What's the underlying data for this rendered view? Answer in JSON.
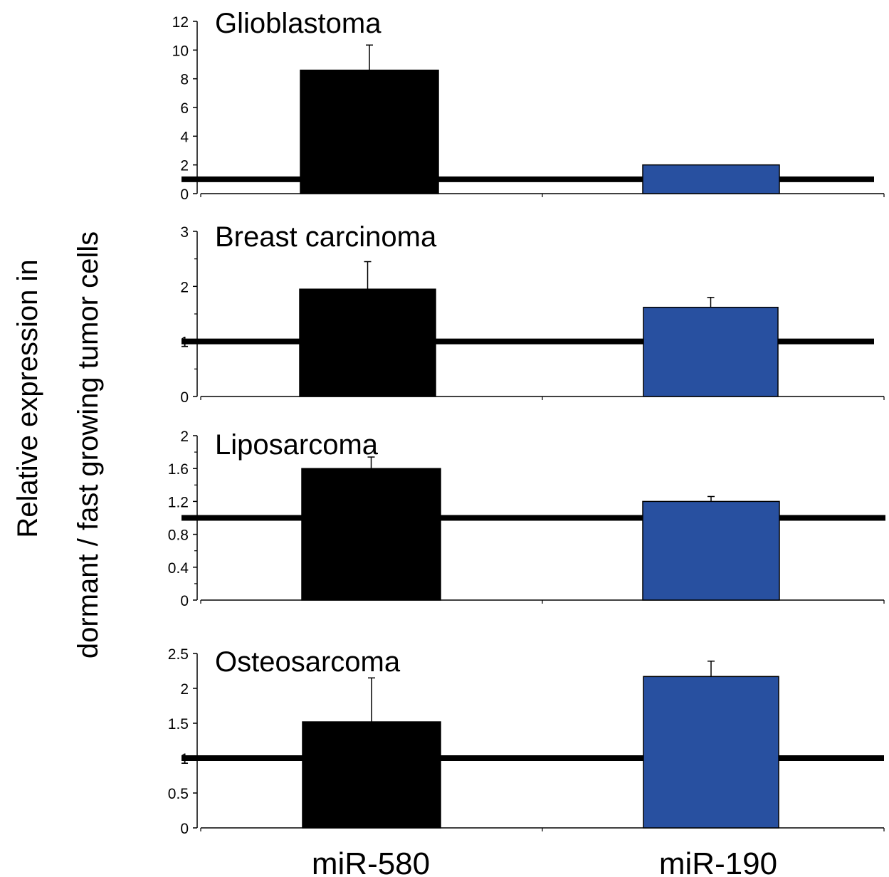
{
  "figure": {
    "ylabel_line1": "Relative expression in",
    "ylabel_line2": "dormant / fast growing tumor cells"
  },
  "chart_data": [
    {
      "type": "bar",
      "title": "Glioblastoma",
      "categories": [
        "miR-580",
        "miR-190"
      ],
      "values": [
        8.6,
        2.0
      ],
      "errors": [
        1.75,
        0
      ],
      "ylim": [
        0,
        12
      ],
      "yticks": [
        0,
        2,
        4,
        6,
        8,
        10,
        12
      ],
      "ytick_labels": [
        "0",
        "2",
        "4",
        "6",
        "8",
        "10",
        "12"
      ],
      "minor_ticks": false,
      "reference_line": 1,
      "colors": [
        "#000000",
        "#2850a0"
      ]
    },
    {
      "type": "bar",
      "title": "Breast carcinoma",
      "categories": [
        "miR-580",
        "miR-190"
      ],
      "values": [
        1.95,
        1.62
      ],
      "errors": [
        0.5,
        0.18
      ],
      "ylim": [
        0,
        3
      ],
      "yticks": [
        0,
        1,
        2,
        3
      ],
      "ytick_labels": [
        "0",
        "1",
        "2",
        "3"
      ],
      "minor_ticks": true,
      "reference_line": 1,
      "colors": [
        "#000000",
        "#2850a0"
      ]
    },
    {
      "type": "bar",
      "title": "Liposarcoma",
      "categories": [
        "miR-580",
        "miR-190"
      ],
      "values": [
        1.6,
        1.2
      ],
      "errors": [
        0.14,
        0.06
      ],
      "ylim": [
        0,
        2
      ],
      "yticks": [
        0,
        0.4,
        0.8,
        1.2,
        1.6,
        2
      ],
      "ytick_labels": [
        "0",
        "0.4",
        "0.8",
        "1.2",
        "1.6",
        "2"
      ],
      "minor_ticks": true,
      "reference_line": 1,
      "colors": [
        "#000000",
        "#2850a0"
      ]
    },
    {
      "type": "bar",
      "title": "Osteosarcoma",
      "categories": [
        "miR-580",
        "miR-190"
      ],
      "values": [
        1.52,
        2.17
      ],
      "errors": [
        0.63,
        0.22
      ],
      "ylim": [
        0,
        2.5
      ],
      "yticks": [
        0,
        0.5,
        1,
        1.5,
        2,
        2.5
      ],
      "ytick_labels": [
        "0",
        "0.5",
        "1",
        "1.5",
        "2",
        "2.5"
      ],
      "minor_ticks": false,
      "reference_line": 1,
      "colors": [
        "#000000",
        "#2850a0"
      ]
    }
  ]
}
